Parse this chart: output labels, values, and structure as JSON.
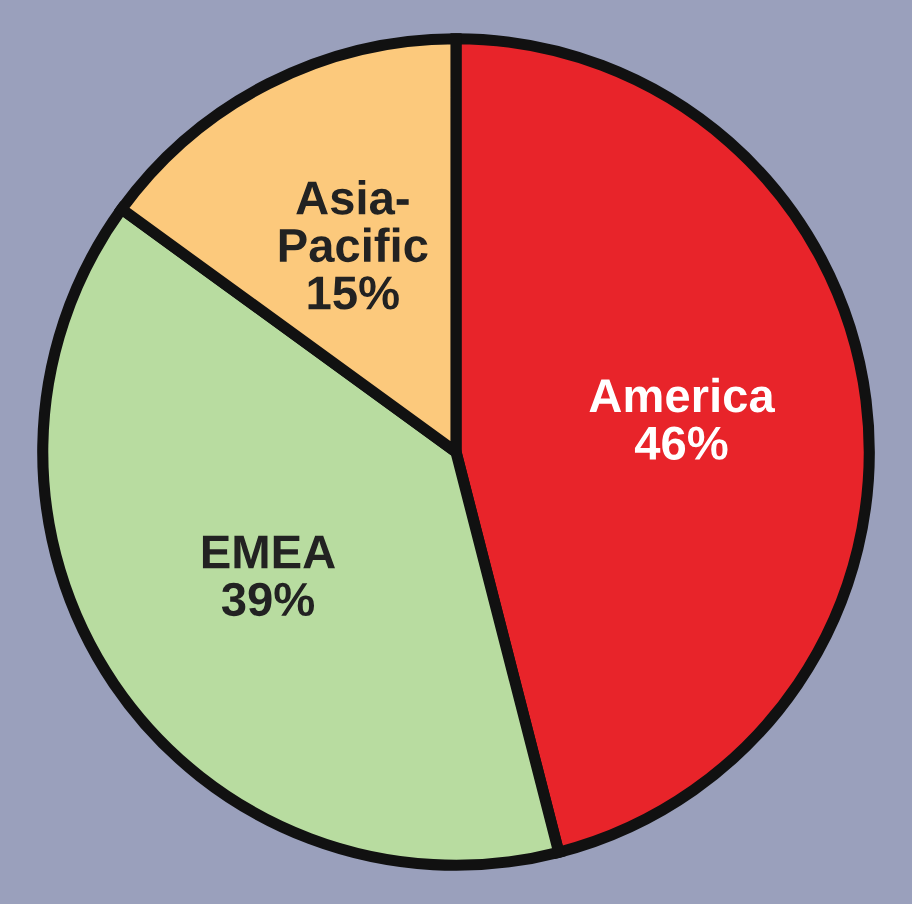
{
  "chart_data": {
    "type": "pie",
    "categories": [
      "America",
      "EMEA",
      "Asia-\nPacific"
    ],
    "values": [
      46,
      39,
      15
    ],
    "value_labels": [
      "46%",
      "39%",
      "15%"
    ],
    "colors": [
      "#e8242a",
      "#b8dca0",
      "#fcc97c"
    ]
  }
}
